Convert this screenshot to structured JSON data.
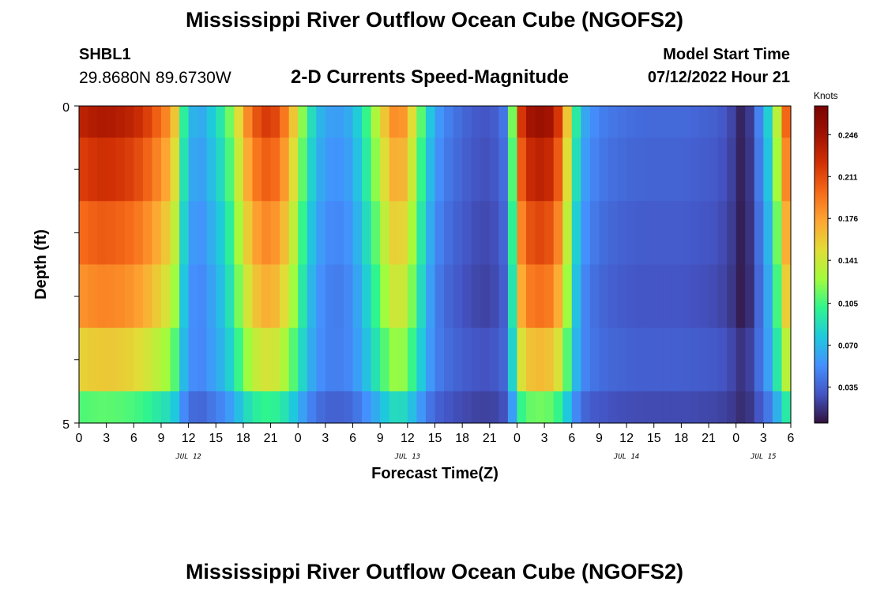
{
  "header": {
    "title_top": "Mississippi River Outflow Ocean Cube (NGOFS2)",
    "title_bottom": "Mississippi River Outflow Ocean Cube (NGOFS2)",
    "station": "SHBL1",
    "coords": "29.8680N  89.6730W",
    "subtitle": "2-D Currents Speed-Magnitude",
    "start_label": "Model Start Time",
    "start_value": "07/12/2022 Hour 21"
  },
  "colors": {
    "scale": [
      "#30123b",
      "#4454c4",
      "#4490fe",
      "#1fc9dd",
      "#2ff58e",
      "#a2fc3c",
      "#e1dd37",
      "#fea633",
      "#f66b19",
      "#d23105",
      "#a11201",
      "#7a0403"
    ]
  },
  "chart_data": {
    "type": "heatmap",
    "title": "2-D Currents Speed-Magnitude",
    "xlabel": "Forecast Time(Z)",
    "ylabel": "Depth (ft)",
    "x_tick_labels": [
      "0",
      "3",
      "6",
      "9",
      "12",
      "15",
      "18",
      "21",
      "0",
      "3",
      "6",
      "9",
      "12",
      "15",
      "18",
      "21",
      "0",
      "3",
      "6",
      "9",
      "12",
      "15",
      "18",
      "21",
      "0",
      "3",
      "6"
    ],
    "date_labels": [
      {
        "label": "JUL 12",
        "hour": 12
      },
      {
        "label": "JUL 13",
        "hour": 36
      },
      {
        "label": "JUL 14",
        "hour": 60
      },
      {
        "label": "JUL 15",
        "hour": 75
      }
    ],
    "x_hours_range": [
      0,
      78
    ],
    "y_tick_labels": [
      "0",
      "5"
    ],
    "ylim": [
      0,
      5
    ],
    "colorbar": {
      "label": "Knots",
      "ticks": [
        "0.246",
        "0.211",
        "0.176",
        "0.141",
        "0.105",
        "0.070",
        "0.035"
      ],
      "tick_values": [
        0.246,
        0.211,
        0.176,
        0.141,
        0.105,
        0.07,
        0.035
      ],
      "range": [
        0.005,
        0.27
      ]
    },
    "layer_depths": [
      0.25,
      1.25,
      2.25,
      3.25,
      4.25,
      4.75
    ],
    "layer_edges": [
      0,
      0.5,
      1.5,
      2.5,
      3.5,
      4.5,
      5
    ],
    "layer_keys": [
      [
        0,
        0.232
      ],
      [
        1,
        0.235
      ],
      [
        2,
        0.24
      ],
      [
        3,
        0.24
      ],
      [
        4,
        0.238
      ],
      [
        5,
        0.235
      ],
      [
        6,
        0.23
      ],
      [
        7,
        0.222
      ],
      [
        8,
        0.21
      ],
      [
        9,
        0.195
      ],
      [
        10,
        0.18
      ],
      [
        10.5,
        0.16
      ],
      [
        11,
        0.12
      ],
      [
        12,
        0.075
      ],
      [
        13,
        0.06
      ],
      [
        14,
        0.07
      ],
      [
        15,
        0.085
      ],
      [
        16,
        0.1
      ],
      [
        17,
        0.13
      ],
      [
        18,
        0.17
      ],
      [
        19,
        0.2
      ],
      [
        20,
        0.215
      ],
      [
        21,
        0.22
      ],
      [
        22,
        0.205
      ],
      [
        23,
        0.18
      ],
      [
        24,
        0.14
      ],
      [
        25,
        0.1
      ],
      [
        26,
        0.075
      ],
      [
        27,
        0.062
      ],
      [
        28,
        0.058
      ],
      [
        29,
        0.06
      ],
      [
        30,
        0.068
      ],
      [
        31,
        0.09
      ],
      [
        32,
        0.115
      ],
      [
        33,
        0.145
      ],
      [
        34,
        0.175
      ],
      [
        35,
        0.19
      ],
      [
        36,
        0.17
      ],
      [
        37,
        0.13
      ],
      [
        38,
        0.09
      ],
      [
        39,
        0.062
      ],
      [
        40,
        0.05
      ],
      [
        41,
        0.043
      ],
      [
        42,
        0.038
      ],
      [
        43,
        0.033
      ],
      [
        44,
        0.03
      ],
      [
        45,
        0.03
      ],
      [
        46,
        0.035
      ],
      [
        47,
        0.05
      ],
      [
        47.6,
        0.13
      ],
      [
        48,
        0.2
      ],
      [
        49,
        0.24
      ],
      [
        50,
        0.25
      ],
      [
        51,
        0.25
      ],
      [
        52,
        0.24
      ],
      [
        53,
        0.2
      ],
      [
        54,
        0.12
      ],
      [
        55,
        0.07
      ],
      [
        56,
        0.055
      ],
      [
        57,
        0.048
      ],
      [
        58,
        0.044
      ],
      [
        60,
        0.04
      ],
      [
        62,
        0.038
      ],
      [
        64,
        0.038
      ],
      [
        66,
        0.038
      ],
      [
        68,
        0.036
      ],
      [
        70,
        0.033
      ],
      [
        71,
        0.028
      ],
      [
        72,
        0.02
      ],
      [
        72.5,
        0.012
      ],
      [
        73,
        0.01
      ],
      [
        73.5,
        0.02
      ],
      [
        74,
        0.035
      ],
      [
        75,
        0.06
      ],
      [
        76,
        0.1
      ],
      [
        77,
        0.17
      ],
      [
        78,
        0.23
      ]
    ],
    "layer_scale": [
      1.0,
      0.93,
      0.85,
      0.78,
      0.62,
      0.42
    ]
  }
}
